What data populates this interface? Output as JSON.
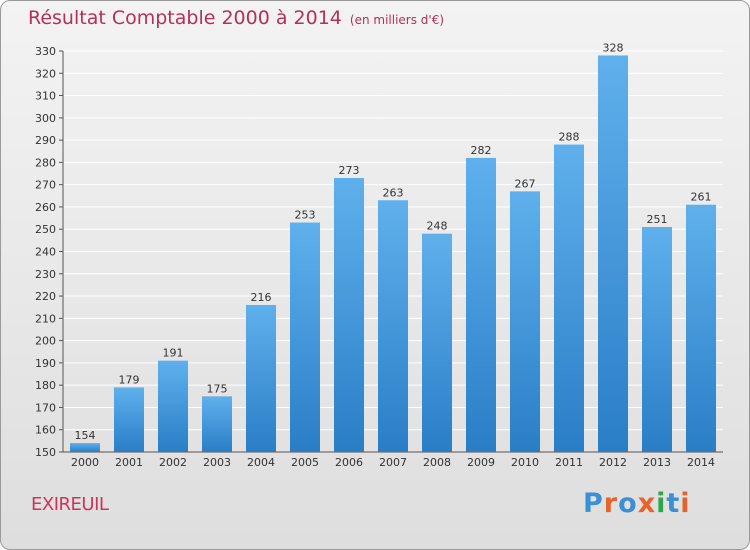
{
  "header": {
    "title": "Résultat Comptable 2000 à 2014",
    "subtitle": "(en milliers d'€)"
  },
  "commune": "EXIREUIL",
  "logo": {
    "text": "Proxiti",
    "letter_colors": [
      "#3b8fd6",
      "#e8632b",
      "#3b8fd6",
      "#e8632b",
      "#2aa84a",
      "#3b8fd6",
      "#e8632b"
    ]
  },
  "colors": {
    "bar_top": "#5fb0ec",
    "bar_bottom": "#2a7ec6",
    "grid": "#ffffff",
    "title": "#b4305a"
  },
  "chart_data": {
    "type": "bar",
    "title": "Résultat Comptable 2000 à 2014",
    "subtitle": "(en milliers d'€)",
    "categories": [
      "2000",
      "2001",
      "2002",
      "2003",
      "2004",
      "2005",
      "2006",
      "2007",
      "2008",
      "2009",
      "2010",
      "2011",
      "2012",
      "2013",
      "2014"
    ],
    "values": [
      154,
      179,
      191,
      175,
      216,
      253,
      273,
      263,
      248,
      282,
      267,
      288,
      328,
      251,
      261
    ],
    "ylim": [
      150,
      330
    ],
    "yticks": [
      150,
      160,
      170,
      180,
      190,
      200,
      210,
      220,
      230,
      240,
      250,
      260,
      270,
      280,
      290,
      300,
      310,
      320,
      330
    ],
    "grid": true,
    "data_labels": true
  }
}
